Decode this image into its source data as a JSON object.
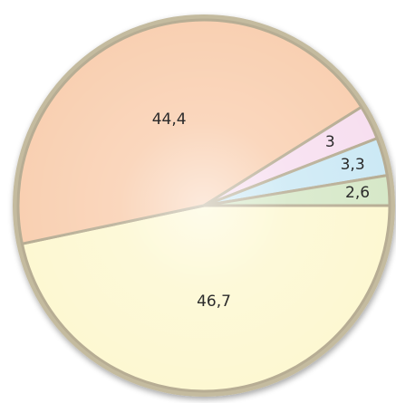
{
  "chart_data": {
    "type": "pie",
    "slices": [
      {
        "label": "46,7",
        "value": 46.7,
        "color": "#fdf8d2"
      },
      {
        "label": "44,4",
        "value": 44.4,
        "color": "#f9d0b2"
      },
      {
        "label": "3",
        "value": 3.0,
        "color": "#f7dff0"
      },
      {
        "label": "3,3",
        "value": 3.3,
        "color": "#cce9f5"
      },
      {
        "label": "2,6",
        "value": 2.6,
        "color": "#d6e8c8"
      }
    ],
    "start": "3 o'clock",
    "direction": "clockwise",
    "border_color": "#b7ad94",
    "legend": "none"
  }
}
